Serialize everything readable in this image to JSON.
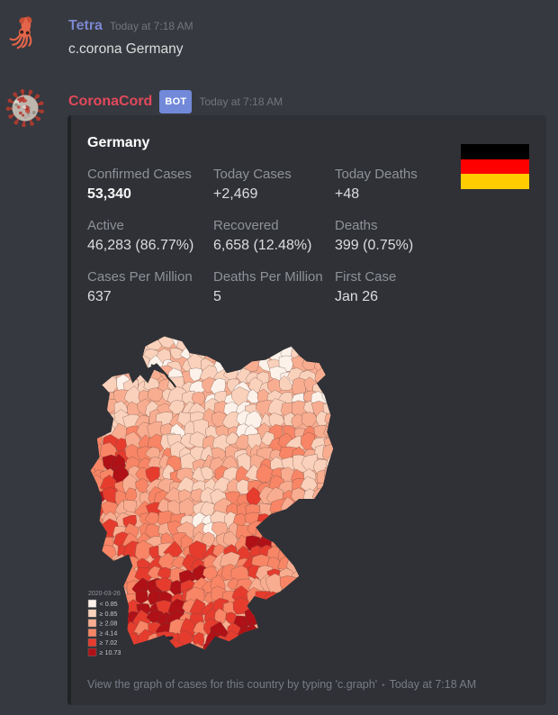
{
  "chat": {
    "background": "#36393f",
    "messages": [
      {
        "author": "Tetra",
        "author_color": "#7a86cf",
        "timestamp": "Today at 7:18 AM",
        "text": "c.corona Germany",
        "avatar": "squid-emoji"
      },
      {
        "author": "CoronaCord",
        "author_color": "#e3485c",
        "bot_badge": "BOT",
        "timestamp": "Today at 7:18 AM",
        "avatar": "coronavirus-particle"
      }
    ]
  },
  "embed": {
    "title": "Germany",
    "accent_color": "#202225",
    "background": "#2f3136",
    "thumbnail": "german-flag",
    "flag_colors": [
      "#000000",
      "#ff0000",
      "#ffcc00"
    ],
    "fields": [
      {
        "name": "Confirmed Cases",
        "value": "53,340",
        "bold": true
      },
      {
        "name": "Today Cases",
        "value": "+2,469"
      },
      {
        "name": "Today Deaths",
        "value": "+48"
      },
      {
        "name": "Active",
        "value": "46,283 (86.77%)"
      },
      {
        "name": "Recovered",
        "value": "6,658 (12.48%)"
      },
      {
        "name": "Deaths",
        "value": "399 (0.75%)"
      },
      {
        "name": "Cases Per Million",
        "value": "637"
      },
      {
        "name": "Deaths Per Million",
        "value": "5"
      },
      {
        "name": "First Case",
        "value": "Jan 26"
      }
    ],
    "map": {
      "description": "choropleth-of-germany-districts-cases-per-10k",
      "legend_title": "2020-03-26",
      "legend": [
        {
          "label": "< 0.85",
          "color": "#fdf2ea"
        },
        {
          "label": "≥ 0.85",
          "color": "#fad1bb"
        },
        {
          "label": "≥ 2.08",
          "color": "#f9ad90"
        },
        {
          "label": "≥ 4.14",
          "color": "#f88565"
        },
        {
          "label": "≥ 7.02",
          "color": "#e53c2e"
        },
        {
          "label": "≥ 10.73",
          "color": "#af1117"
        }
      ]
    },
    "footer": {
      "text": "View the graph of cases for this country by typing 'c.graph'",
      "separator": "•",
      "timestamp": "Today at 7:18 AM"
    }
  }
}
